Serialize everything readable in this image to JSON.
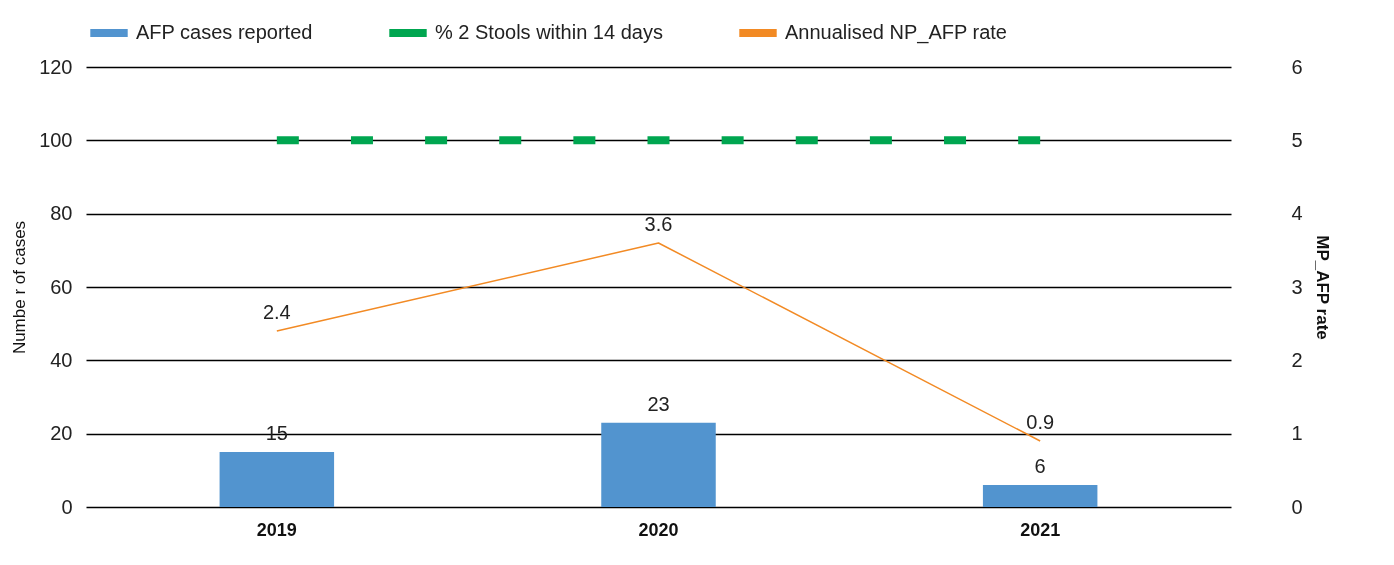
{
  "chart_data": {
    "type": "bar",
    "categories": [
      "2019",
      "2020",
      "2021"
    ],
    "ylabel": "Numbe r of cases",
    "y2label": "MP_AFP rate",
    "series": [
      {
        "name": "AFP cases reported",
        "color": "#5294cf",
        "values": [
          15,
          23,
          6
        ],
        "value_labels": [
          "15",
          "23",
          "6"
        ]
      },
      {
        "name": "% 2 Stools within 14 days",
        "type": "line",
        "color": "#00a650",
        "line_style": "dashed",
        "values": [
          100,
          100,
          100
        ]
      },
      {
        "name": "Annualised NP_AFP rate",
        "type": "line",
        "axis": "y2",
        "color": "#f28a24",
        "values": [
          2.4,
          3.6,
          0.9
        ],
        "value_labels": [
          "2.4",
          "3.6",
          "0.9"
        ]
      }
    ],
    "ylim": [
      0,
      120
    ],
    "yticks": [
      0,
      20,
      40,
      60,
      80,
      100,
      120
    ],
    "y2lim": [
      0,
      6
    ],
    "y2ticks": [
      0,
      1,
      2,
      3,
      4,
      5,
      6
    ],
    "grid": "y",
    "legend": "top"
  }
}
